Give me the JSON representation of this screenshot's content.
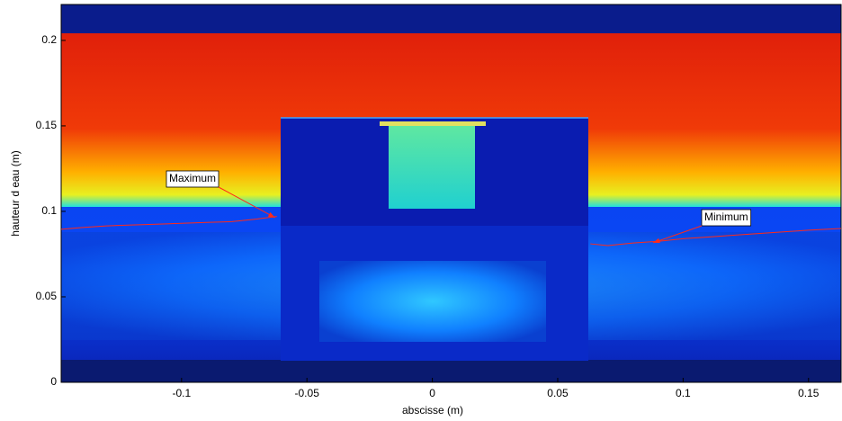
{
  "chart_data": {
    "type": "image",
    "xlabel": "abscisse (m)",
    "ylabel": "hauteur d eau (m)",
    "xlim": [
      -0.148,
      0.163
    ],
    "ylim": [
      0,
      0.221
    ],
    "xticks": [
      -0.1,
      -0.05,
      0,
      0.05,
      0.1,
      0.15
    ],
    "yticks": [
      0,
      0.05,
      0.1,
      0.15,
      0.2
    ],
    "series": [
      {
        "color": "#ff2a1a",
        "x": [
          -0.148,
          -0.14,
          -0.13,
          -0.12,
          -0.11,
          -0.1,
          -0.09,
          -0.08,
          -0.07,
          -0.062
        ],
        "values": [
          0.0895,
          0.0905,
          0.0915,
          0.092,
          0.0925,
          0.093,
          0.0935,
          0.094,
          0.0955,
          0.097
        ]
      },
      {
        "color": "#ff2a1a",
        "x": [
          0.063,
          0.07,
          0.08,
          0.09,
          0.1,
          0.11,
          0.12,
          0.13,
          0.14,
          0.15,
          0.163
        ],
        "values": [
          0.081,
          0.08,
          0.0815,
          0.0825,
          0.084,
          0.085,
          0.086,
          0.087,
          0.088,
          0.089,
          0.09
        ]
      }
    ],
    "annotations": [
      {
        "text": "Maximum",
        "xy": [
          -0.0627,
          0.0963
        ]
      },
      {
        "text": "Minimum",
        "xy": [
          0.088,
          0.0816
        ]
      }
    ]
  }
}
